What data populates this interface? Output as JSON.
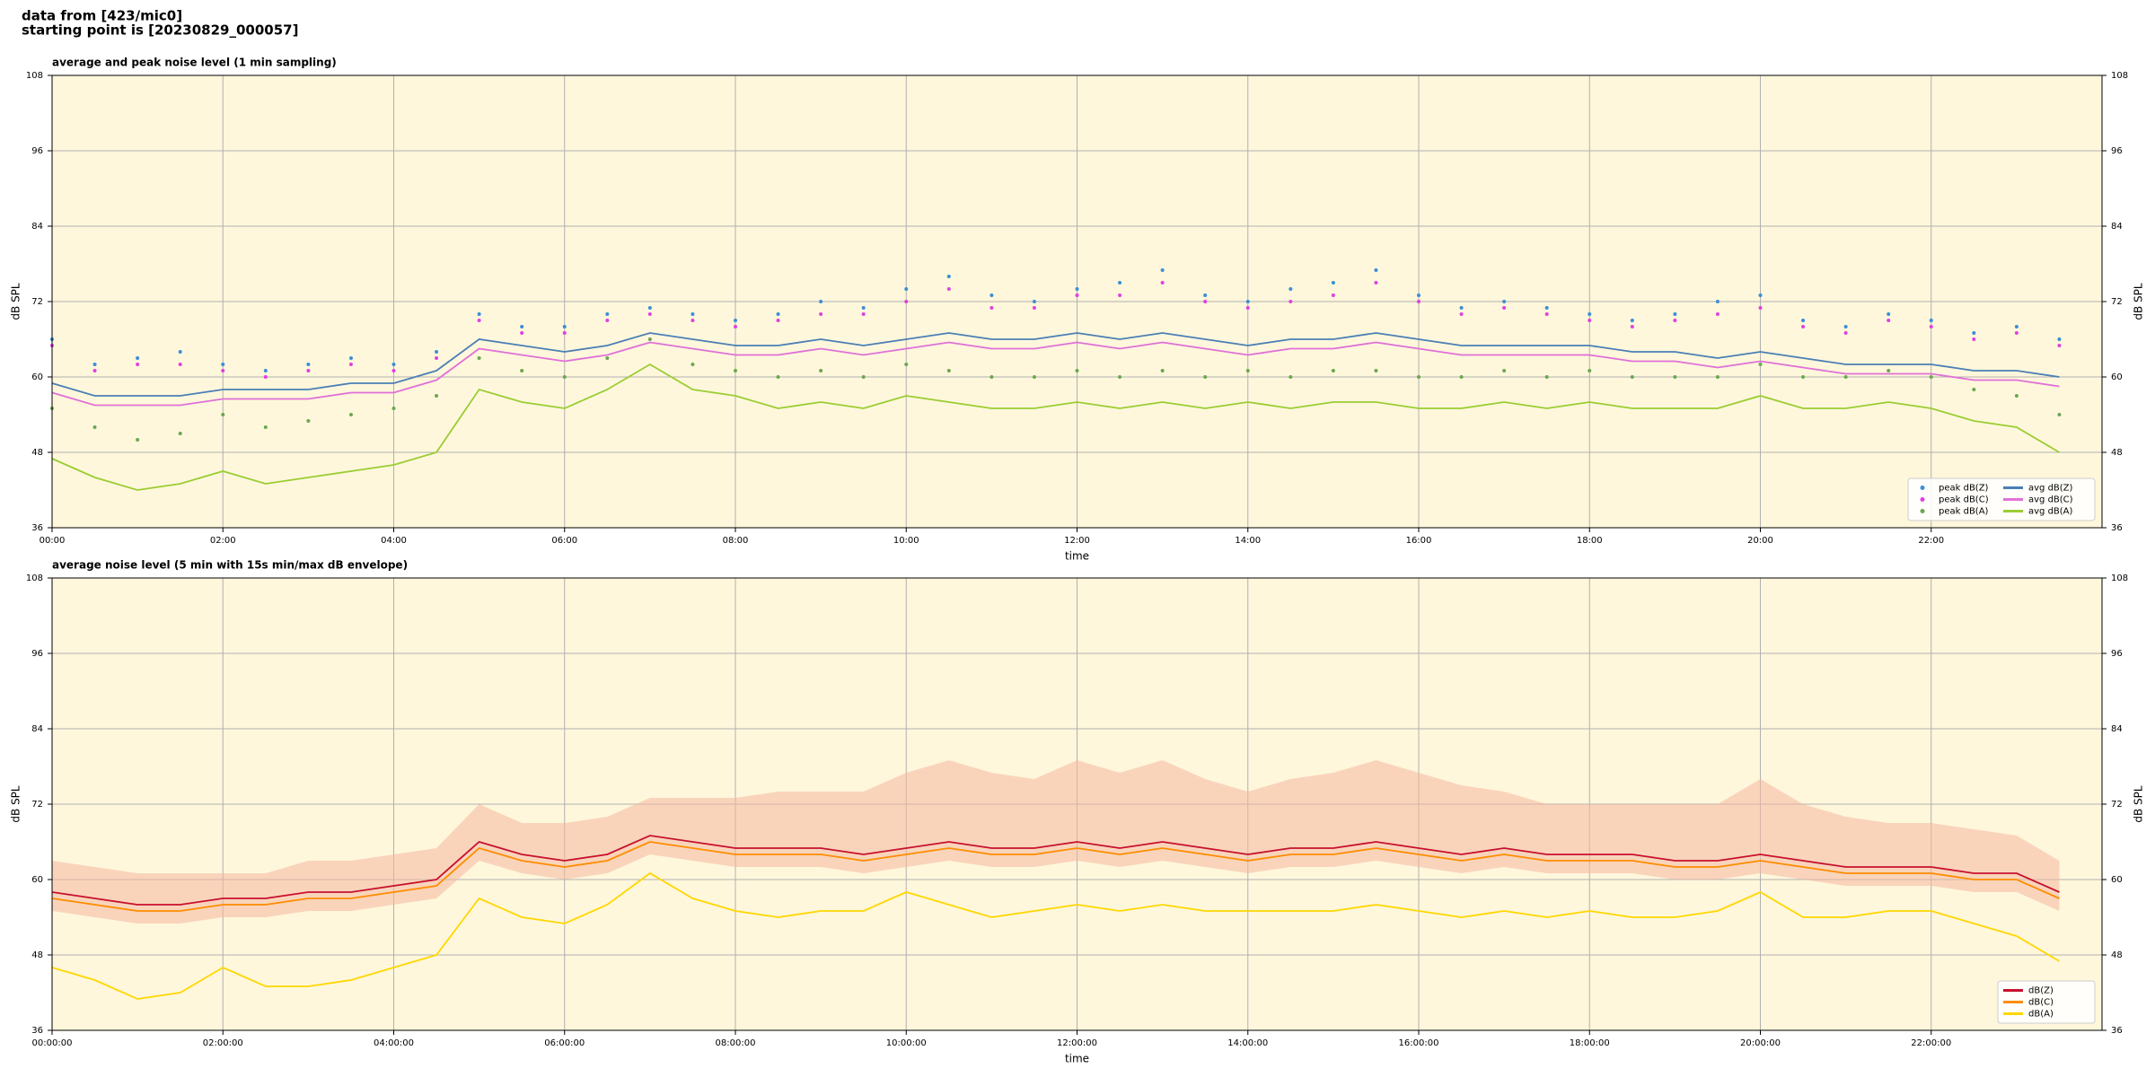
{
  "suptitle": [
    "data from [423/mic0]",
    "starting point is [20230829_000057]"
  ],
  "chart_data": [
    {
      "type": "line",
      "title": "average and peak noise level (1 min sampling)",
      "xlabel": "time",
      "ylabel": "dB SPL",
      "x": [
        0,
        0.5,
        1,
        1.5,
        2,
        2.5,
        3,
        3.5,
        4,
        4.5,
        5,
        5.5,
        6,
        6.5,
        7,
        7.5,
        8,
        8.5,
        9,
        9.5,
        10,
        10.5,
        11,
        11.5,
        12,
        12.5,
        13,
        13.5,
        14,
        14.5,
        15,
        15.5,
        16,
        16.5,
        17,
        17.5,
        18,
        18.5,
        19,
        19.5,
        20,
        20.5,
        21,
        21.5,
        22,
        22.5,
        23,
        23.5
      ],
      "xlim": [
        0,
        24
      ],
      "xticks": [
        {
          "value": 0,
          "label": "00:00"
        },
        {
          "value": 2,
          "label": "02:00"
        },
        {
          "value": 4,
          "label": "04:00"
        },
        {
          "value": 6,
          "label": "06:00"
        },
        {
          "value": 8,
          "label": "08:00"
        },
        {
          "value": 10,
          "label": "10:00"
        },
        {
          "value": 12,
          "label": "12:00"
        },
        {
          "value": 14,
          "label": "14:00"
        },
        {
          "value": 16,
          "label": "16:00"
        },
        {
          "value": 18,
          "label": "18:00"
        },
        {
          "value": 20,
          "label": "20:00"
        },
        {
          "value": 22,
          "label": "22:00"
        }
      ],
      "ylim": [
        36,
        108
      ],
      "yticks": [
        36,
        48,
        60,
        72,
        84,
        96,
        108
      ],
      "grid": true,
      "legend": "lower right",
      "legend_columns": 2,
      "series": [
        {
          "name": "peak dB(Z)",
          "style": "points",
          "color": "#3a8fd8",
          "values": [
            66,
            62,
            63,
            64,
            62,
            61,
            62,
            63,
            62,
            64,
            70,
            68,
            68,
            70,
            71,
            70,
            69,
            70,
            72,
            71,
            74,
            76,
            73,
            72,
            74,
            75,
            77,
            73,
            72,
            74,
            75,
            77,
            73,
            71,
            72,
            71,
            70,
            69,
            70,
            72,
            73,
            69,
            68,
            70,
            69,
            67,
            68,
            66
          ]
        },
        {
          "name": "peak dB(C)",
          "style": "points",
          "color": "#e040e0",
          "values": [
            65,
            61,
            62,
            62,
            61,
            60,
            61,
            62,
            61,
            63,
            69,
            67,
            67,
            69,
            70,
            69,
            68,
            69,
            70,
            70,
            72,
            74,
            71,
            71,
            73,
            73,
            75,
            72,
            71,
            72,
            73,
            75,
            72,
            70,
            71,
            70,
            69,
            68,
            69,
            70,
            71,
            68,
            67,
            69,
            68,
            66,
            67,
            65
          ]
        },
        {
          "name": "peak dB(A)",
          "style": "points",
          "color": "#6aa84f",
          "values": [
            55,
            52,
            50,
            51,
            54,
            52,
            53,
            54,
            55,
            57,
            63,
            61,
            60,
            63,
            66,
            62,
            61,
            60,
            61,
            60,
            62,
            61,
            60,
            60,
            61,
            60,
            61,
            60,
            61,
            60,
            61,
            61,
            60,
            60,
            61,
            60,
            61,
            60,
            60,
            60,
            62,
            60,
            60,
            61,
            60,
            58,
            57,
            54
          ]
        },
        {
          "name": "avg dB(Z)",
          "style": "line",
          "color": "#4a7fb5",
          "values": [
            59,
            57,
            57,
            57,
            58,
            58,
            58,
            59,
            59,
            61,
            66,
            65,
            64,
            65,
            67,
            66,
            65,
            65,
            66,
            65,
            66,
            67,
            66,
            66,
            67,
            66,
            67,
            66,
            65,
            66,
            66,
            67,
            66,
            65,
            65,
            65,
            65,
            64,
            64,
            63,
            64,
            63,
            62,
            62,
            62,
            61,
            61,
            60
          ]
        },
        {
          "name": "avg dB(C)",
          "style": "line",
          "color": "#e070d8",
          "values": [
            57.5,
            55.5,
            55.5,
            55.5,
            56.5,
            56.5,
            56.5,
            57.5,
            57.5,
            59.5,
            64.5,
            63.5,
            62.5,
            63.5,
            65.5,
            64.5,
            63.5,
            63.5,
            64.5,
            63.5,
            64.5,
            65.5,
            64.5,
            64.5,
            65.5,
            64.5,
            65.5,
            64.5,
            63.5,
            64.5,
            64.5,
            65.5,
            64.5,
            63.5,
            63.5,
            63.5,
            63.5,
            62.5,
            62.5,
            61.5,
            62.5,
            61.5,
            60.5,
            60.5,
            60.5,
            59.5,
            59.5,
            58.5
          ]
        },
        {
          "name": "avg dB(A)",
          "style": "line",
          "color": "#9acd32",
          "values": [
            47,
            44,
            42,
            43,
            45,
            43,
            44,
            45,
            46,
            48,
            58,
            56,
            55,
            58,
            62,
            58,
            57,
            55,
            56,
            55,
            57,
            56,
            55,
            55,
            56,
            55,
            56,
            55,
            56,
            55,
            56,
            56,
            55,
            55,
            56,
            55,
            56,
            55,
            55,
            55,
            57,
            55,
            55,
            56,
            55,
            53,
            52,
            48
          ]
        }
      ]
    },
    {
      "type": "line",
      "title": "average noise level (5 min with 15s min/max dB envelope)",
      "xlabel": "time",
      "ylabel": "dB SPL",
      "x": [
        0,
        0.5,
        1,
        1.5,
        2,
        2.5,
        3,
        3.5,
        4,
        4.5,
        5,
        5.5,
        6,
        6.5,
        7,
        7.5,
        8,
        8.5,
        9,
        9.5,
        10,
        10.5,
        11,
        11.5,
        12,
        12.5,
        13,
        13.5,
        14,
        14.5,
        15,
        15.5,
        16,
        16.5,
        17,
        17.5,
        18,
        18.5,
        19,
        19.5,
        20,
        20.5,
        21,
        21.5,
        22,
        22.5,
        23,
        23.5
      ],
      "xlim": [
        0,
        24
      ],
      "xticks": [
        {
          "value": 0,
          "label": "00:00:00"
        },
        {
          "value": 2,
          "label": "02:00:00"
        },
        {
          "value": 4,
          "label": "04:00:00"
        },
        {
          "value": 6,
          "label": "06:00:00"
        },
        {
          "value": 8,
          "label": "08:00:00"
        },
        {
          "value": 10,
          "label": "10:00:00"
        },
        {
          "value": 12,
          "label": "12:00:00"
        },
        {
          "value": 14,
          "label": "14:00:00"
        },
        {
          "value": 16,
          "label": "16:00:00"
        },
        {
          "value": 18,
          "label": "18:00:00"
        },
        {
          "value": 20,
          "label": "20:00:00"
        },
        {
          "value": 22,
          "label": "22:00:00"
        }
      ],
      "ylim": [
        36,
        108
      ],
      "yticks": [
        36,
        48,
        60,
        72,
        84,
        96,
        108
      ],
      "grid": true,
      "legend": "lower right",
      "legend_columns": 1,
      "envelope": {
        "color": "#f4b8a0",
        "upper": [
          63,
          62,
          61,
          61,
          61,
          61,
          63,
          63,
          64,
          65,
          72,
          69,
          69,
          70,
          73,
          73,
          73,
          74,
          74,
          74,
          77,
          79,
          77,
          76,
          79,
          77,
          79,
          76,
          74,
          76,
          77,
          79,
          77,
          75,
          74,
          72,
          72,
          72,
          72,
          72,
          76,
          72,
          70,
          69,
          69,
          68,
          67,
          63
        ],
        "lower": [
          55,
          54,
          53,
          53,
          54,
          54,
          55,
          55,
          56,
          57,
          63,
          61,
          60,
          61,
          64,
          63,
          62,
          62,
          62,
          61,
          62,
          63,
          62,
          62,
          63,
          62,
          63,
          62,
          61,
          62,
          62,
          63,
          62,
          61,
          62,
          61,
          61,
          61,
          60,
          60,
          61,
          60,
          59,
          59,
          59,
          58,
          58,
          55
        ]
      },
      "series": [
        {
          "name": "dB(Z)",
          "style": "line",
          "color": "#c8102e",
          "values": [
            58,
            57,
            56,
            56,
            57,
            57,
            58,
            58,
            59,
            60,
            66,
            64,
            63,
            64,
            67,
            66,
            65,
            65,
            65,
            64,
            65,
            66,
            65,
            65,
            66,
            65,
            66,
            65,
            64,
            65,
            65,
            66,
            65,
            64,
            65,
            64,
            64,
            64,
            63,
            63,
            64,
            63,
            62,
            62,
            62,
            61,
            61,
            58
          ]
        },
        {
          "name": "dB(C)",
          "style": "line",
          "color": "#ff8c00",
          "values": [
            57,
            56,
            55,
            55,
            56,
            56,
            57,
            57,
            58,
            59,
            65,
            63,
            62,
            63,
            66,
            65,
            64,
            64,
            64,
            63,
            64,
            65,
            64,
            64,
            65,
            64,
            65,
            64,
            63,
            64,
            64,
            65,
            64,
            63,
            64,
            63,
            63,
            63,
            62,
            62,
            63,
            62,
            61,
            61,
            61,
            60,
            60,
            57
          ]
        },
        {
          "name": "dB(A)",
          "style": "line",
          "color": "#ffd700",
          "values": [
            46,
            44,
            41,
            42,
            46,
            43,
            43,
            44,
            46,
            48,
            57,
            54,
            53,
            56,
            61,
            57,
            55,
            54,
            55,
            55,
            58,
            56,
            54,
            55,
            56,
            55,
            56,
            55,
            55,
            55,
            55,
            56,
            55,
            54,
            55,
            54,
            55,
            54,
            54,
            55,
            58,
            54,
            54,
            55,
            55,
            53,
            51,
            47
          ]
        }
      ]
    }
  ]
}
